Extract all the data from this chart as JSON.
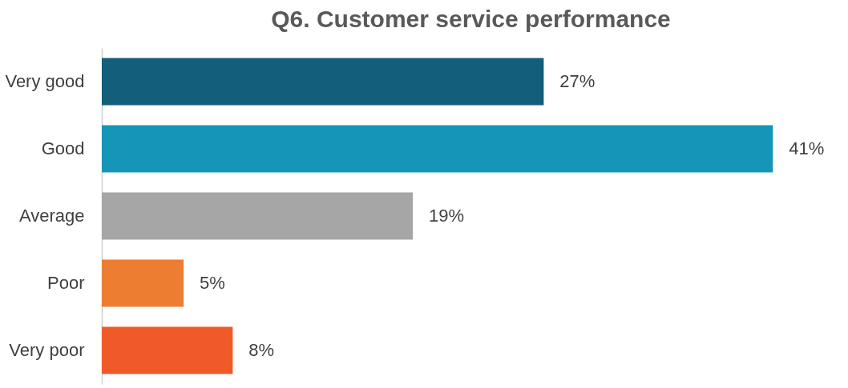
{
  "chart_data": {
    "type": "bar",
    "orientation": "horizontal",
    "title": "Q6. Customer service performance",
    "categories": [
      "Very good",
      "Good",
      "Average",
      "Poor",
      "Very poor"
    ],
    "values": [
      27,
      41,
      19,
      5,
      8
    ],
    "value_labels": [
      "27%",
      "41%",
      "19%",
      "5%",
      "8%"
    ],
    "colors": [
      "#135e7b",
      "#1596b8",
      "#a6a6a6",
      "#ed7d31",
      "#f05a28"
    ],
    "grid": false
  }
}
